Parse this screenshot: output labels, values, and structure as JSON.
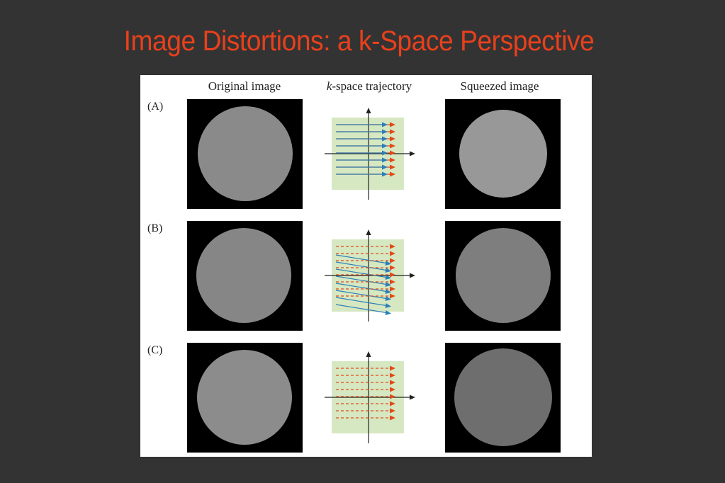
{
  "slide": {
    "title": "Image Distortions: a k-Space Perspective"
  },
  "figure": {
    "columns": {
      "original": "Original image",
      "kspace_italic": "k",
      "kspace_rest": "-space trajectory",
      "squeezed": "Squeezed image"
    },
    "rows": [
      {
        "label": "(A)",
        "trajectory": "forward"
      },
      {
        "label": "(B)",
        "trajectory": "forward-and-offset"
      },
      {
        "label": "(C)",
        "trajectory": "not-acquired"
      }
    ],
    "colors": {
      "background": "#333333",
      "title": "#e8401c",
      "kspace_fill": "#d6e8c2",
      "acquired_arrow": "#2c7fb8",
      "target_arrow": "#e04a1a"
    }
  }
}
